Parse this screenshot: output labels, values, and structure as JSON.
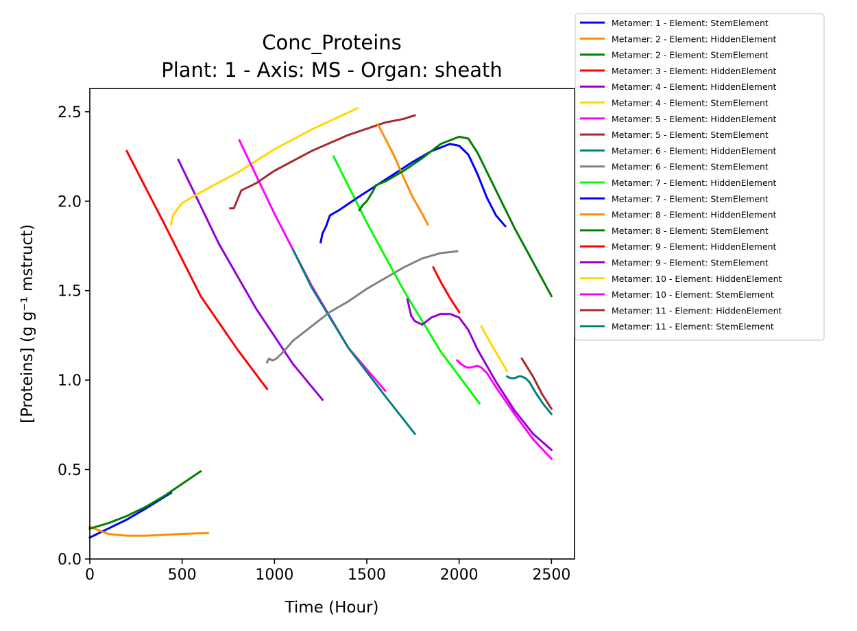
{
  "chart_data": {
    "type": "line",
    "title": "Conc_Proteins",
    "subtitle": "Plant: 1 - Axis: MS - Organ: sheath",
    "xlabel": "Time (Hour)",
    "ylabel": "[Proteins] (g g⁻¹ mstruct)",
    "xlim": [
      0,
      2625
    ],
    "ylim": [
      0,
      2.63
    ],
    "xticks": [
      0,
      500,
      1000,
      1500,
      2000,
      2500
    ],
    "xtick_labels": [
      "0",
      "500",
      "1000",
      "1500",
      "2000",
      "2500"
    ],
    "yticks": [
      0,
      0.5,
      1.0,
      1.5,
      2.0,
      2.5
    ],
    "ytick_labels": [
      "0.0",
      "0.5",
      "1.0",
      "1.5",
      "2.0",
      "2.5"
    ],
    "grid": false,
    "legend_position": "outside-top-right",
    "series": [
      {
        "name": "Metamer: 1 - Element: StemElement",
        "color": "#0000ff",
        "x": [
          0,
          100,
          200,
          300,
          440
        ],
        "y": [
          0.12,
          0.17,
          0.22,
          0.28,
          0.37
        ]
      },
      {
        "name": "Metamer: 2 - Element: HiddenElement",
        "color": "#ff8c00",
        "x": [
          0,
          50,
          100,
          200,
          300,
          400,
          500,
          640
        ],
        "y": [
          0.18,
          0.16,
          0.14,
          0.13,
          0.13,
          0.135,
          0.14,
          0.145
        ]
      },
      {
        "name": "Metamer: 2 - Element: StemElement",
        "color": "#008000",
        "x": [
          0,
          100,
          200,
          300,
          400,
          500,
          600
        ],
        "y": [
          0.17,
          0.2,
          0.24,
          0.29,
          0.35,
          0.42,
          0.49
        ]
      },
      {
        "name": "Metamer: 3 - Element: HiddenElement",
        "color": "#ff0000",
        "x": [
          200,
          400,
          600,
          800,
          960
        ],
        "y": [
          2.28,
          1.88,
          1.47,
          1.17,
          0.95
        ]
      },
      {
        "name": "Metamer: 4 - Element: HiddenElement",
        "color": "#9400d3",
        "x": [
          480,
          700,
          900,
          1100,
          1260
        ],
        "y": [
          2.23,
          1.76,
          1.4,
          1.09,
          0.89
        ]
      },
      {
        "name": "Metamer: 4 - Element: StemElement",
        "color": "#ffd700",
        "x": [
          440,
          450,
          470,
          500,
          600,
          800,
          1000,
          1200,
          1450
        ],
        "y": [
          1.87,
          1.92,
          1.95,
          1.99,
          2.05,
          2.16,
          2.29,
          2.4,
          2.52
        ]
      },
      {
        "name": "Metamer: 5 - Element: HiddenElement",
        "color": "#ff00ff",
        "x": [
          810,
          1000,
          1200,
          1400,
          1600
        ],
        "y": [
          2.34,
          1.93,
          1.53,
          1.18,
          0.94
        ]
      },
      {
        "name": "Metamer: 5 - Element: StemElement",
        "color": "#a52a2a",
        "x": [
          760,
          780,
          800,
          820,
          900,
          1000,
          1200,
          1400,
          1600,
          1700,
          1760
        ],
        "y": [
          1.96,
          1.96,
          2.01,
          2.06,
          2.1,
          2.17,
          2.28,
          2.37,
          2.44,
          2.46,
          2.48
        ]
      },
      {
        "name": "Metamer: 6 - Element: HiddenElement",
        "color": "#008080",
        "x": [
          1100,
          1200,
          1400,
          1600,
          1760
        ],
        "y": [
          1.73,
          1.52,
          1.18,
          0.91,
          0.7
        ]
      },
      {
        "name": "Metamer: 6 - Element: StemElement",
        "color": "#808080",
        "x": [
          960,
          970,
          990,
          1010,
          1050,
          1100,
          1200,
          1300,
          1400,
          1500,
          1600,
          1700,
          1800,
          1900,
          1990
        ],
        "y": [
          1.1,
          1.12,
          1.11,
          1.12,
          1.16,
          1.22,
          1.3,
          1.38,
          1.44,
          1.51,
          1.57,
          1.63,
          1.68,
          1.71,
          1.72
        ]
      },
      {
        "name": "Metamer: 7 - Element: HiddenElement",
        "color": "#00ff00",
        "x": [
          1320,
          1500,
          1700,
          1900,
          2110
        ],
        "y": [
          2.25,
          1.88,
          1.5,
          1.16,
          0.87
        ]
      },
      {
        "name": "Metamer: 7 - Element: StemElement",
        "color": "#0000ff",
        "x": [
          1250,
          1260,
          1280,
          1300,
          1350,
          1450,
          1600,
          1750,
          1850,
          1950,
          2000,
          2050,
          2100,
          2150,
          2200,
          2250
        ],
        "y": [
          1.77,
          1.82,
          1.86,
          1.92,
          1.95,
          2.02,
          2.12,
          2.22,
          2.28,
          2.32,
          2.31,
          2.26,
          2.15,
          2.02,
          1.92,
          1.86
        ]
      },
      {
        "name": "Metamer: 8 - Element: HiddenElement",
        "color": "#ff8c00",
        "x": [
          1560,
          1600,
          1650,
          1700,
          1750,
          1800,
          1830
        ],
        "y": [
          2.43,
          2.35,
          2.25,
          2.13,
          2.02,
          1.93,
          1.87
        ]
      },
      {
        "name": "Metamer: 8 - Element: StemElement",
        "color": "#008000",
        "x": [
          1460,
          1480,
          1500,
          1530,
          1550,
          1600,
          1700,
          1800,
          1900,
          2000,
          2050,
          2100,
          2200,
          2300,
          2400,
          2500
        ],
        "y": [
          1.95,
          1.98,
          2.0,
          2.05,
          2.09,
          2.11,
          2.17,
          2.24,
          2.32,
          2.36,
          2.35,
          2.27,
          2.06,
          1.85,
          1.66,
          1.47
        ]
      },
      {
        "name": "Metamer: 9 - Element: HiddenElement",
        "color": "#ff0000",
        "x": [
          1860,
          1900,
          1950,
          2000
        ],
        "y": [
          1.63,
          1.55,
          1.46,
          1.38
        ]
      },
      {
        "name": "Metamer: 9 - Element: StemElement",
        "color": "#9400d3",
        "x": [
          1720,
          1740,
          1760,
          1800,
          1850,
          1900,
          1950,
          2000,
          2050,
          2100,
          2200,
          2300,
          2400,
          2500
        ],
        "y": [
          1.45,
          1.36,
          1.33,
          1.31,
          1.35,
          1.37,
          1.37,
          1.35,
          1.28,
          1.17,
          0.99,
          0.83,
          0.7,
          0.61
        ]
      },
      {
        "name": "Metamer: 10 - Element: HiddenElement",
        "color": "#ffd700",
        "x": [
          2120,
          2180,
          2260
        ],
        "y": [
          1.3,
          1.19,
          1.05
        ]
      },
      {
        "name": "Metamer: 10 - Element: StemElement",
        "color": "#ff00ff",
        "x": [
          1990,
          2010,
          2040,
          2060,
          2100,
          2120,
          2150,
          2200,
          2300,
          2400,
          2500
        ],
        "y": [
          1.11,
          1.09,
          1.07,
          1.07,
          1.08,
          1.07,
          1.04,
          0.96,
          0.81,
          0.67,
          0.56
        ]
      },
      {
        "name": "Metamer: 11 - Element: HiddenElement",
        "color": "#a52a2a",
        "x": [
          2340,
          2400,
          2450,
          2500
        ],
        "y": [
          1.12,
          1.02,
          0.92,
          0.84
        ]
      },
      {
        "name": "Metamer: 11 - Element: StemElement",
        "color": "#008080",
        "x": [
          2260,
          2280,
          2300,
          2320,
          2340,
          2360,
          2380,
          2420,
          2460,
          2500
        ],
        "y": [
          1.02,
          1.01,
          1.01,
          1.02,
          1.02,
          1.01,
          0.99,
          0.92,
          0.86,
          0.81
        ]
      }
    ]
  }
}
